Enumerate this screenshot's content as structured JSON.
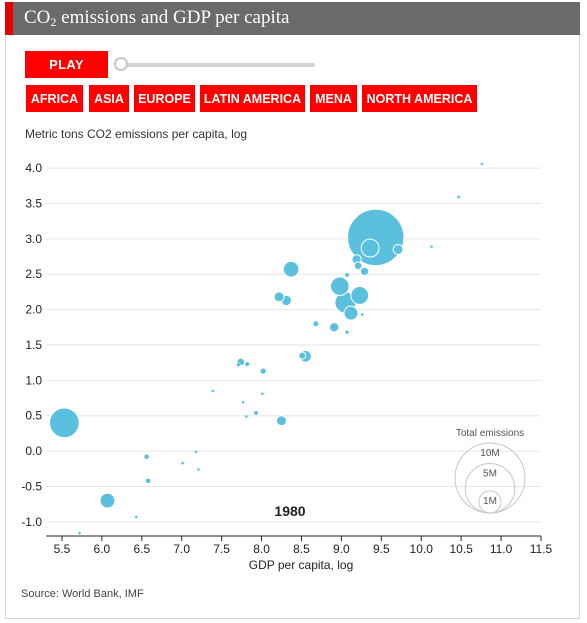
{
  "title": {
    "main": "CO",
    "subscript": "2",
    "rest": " emissions and GDP per capita"
  },
  "controls": {
    "play_label": "PLAY",
    "regions": [
      "AFRICA",
      "ASIA",
      "EUROPE",
      "LATIN AMERICA",
      "MENA",
      "NORTH AMERICA"
    ]
  },
  "source": "Source: World Bank, IMF",
  "colors": {
    "accent": "#ff0000",
    "title_bar": "#6a6a6a",
    "bubble": "#5bc0de",
    "bubble_stroke": "#ffffff"
  },
  "chart_data": {
    "type": "scatter",
    "ylabel": "Metric tons CO2 emissions per capita, log",
    "xlabel": "GDP per capita, log",
    "xlim": [
      5.3,
      11.5
    ],
    "ylim": [
      -1.2,
      4.1
    ],
    "x_ticks": [
      "5.5",
      "6.0",
      "6.5",
      "7.0",
      "7.5",
      "8.0",
      "8.5",
      "9.0",
      "9.5",
      "10.0",
      "10.5",
      "11.0",
      "11.5"
    ],
    "y_ticks": [
      "4.0",
      "3.5",
      "3.0",
      "2.5",
      "2.0",
      "1.5",
      "1.0",
      "0.5",
      "0.0",
      "-0.5",
      "-1.0"
    ],
    "grid": "horizontal",
    "year": "1980",
    "size_legend": {
      "title": "Total emissions",
      "entries": [
        "10M",
        "5M",
        "1M"
      ]
    },
    "points": [
      {
        "x": 5.53,
        "y": 0.4,
        "size": 1.8
      },
      {
        "x": 6.07,
        "y": -0.7,
        "size": 0.45
      },
      {
        "x": 5.72,
        "y": -1.16,
        "size": 0.01
      },
      {
        "x": 6.43,
        "y": -0.93,
        "size": 0.02
      },
      {
        "x": 6.58,
        "y": -0.42,
        "size": 0.05
      },
      {
        "x": 6.56,
        "y": -0.08,
        "size": 0.05
      },
      {
        "x": 7.01,
        "y": -0.17,
        "size": 0.02
      },
      {
        "x": 7.18,
        "y": -0.01,
        "size": 0.02
      },
      {
        "x": 7.21,
        "y": -0.26,
        "size": 0.01
      },
      {
        "x": 7.39,
        "y": 0.85,
        "size": 0.01
      },
      {
        "x": 7.74,
        "y": 1.26,
        "size": 0.12
      },
      {
        "x": 7.71,
        "y": 1.22,
        "size": 0.03
      },
      {
        "x": 7.82,
        "y": 1.23,
        "size": 0.04
      },
      {
        "x": 8.02,
        "y": 1.13,
        "size": 0.08
      },
      {
        "x": 7.77,
        "y": 0.69,
        "size": 0.01
      },
      {
        "x": 7.81,
        "y": 0.49,
        "size": 0.02
      },
      {
        "x": 7.93,
        "y": 0.54,
        "size": 0.04
      },
      {
        "x": 8.01,
        "y": 0.81,
        "size": 0.01
      },
      {
        "x": 8.25,
        "y": 0.43,
        "size": 0.2
      },
      {
        "x": 8.22,
        "y": 2.18,
        "size": 0.2
      },
      {
        "x": 8.31,
        "y": 2.13,
        "size": 0.22
      },
      {
        "x": 8.37,
        "y": 2.57,
        "size": 0.5
      },
      {
        "x": 8.51,
        "y": 1.35,
        "size": 0.1
      },
      {
        "x": 8.55,
        "y": 1.34,
        "size": 0.28
      },
      {
        "x": 8.68,
        "y": 1.8,
        "size": 0.06
      },
      {
        "x": 8.91,
        "y": 1.75,
        "size": 0.18
      },
      {
        "x": 8.98,
        "y": 2.33,
        "size": 0.7
      },
      {
        "x": 9.05,
        "y": 2.1,
        "size": 0.9
      },
      {
        "x": 9.07,
        "y": 1.68,
        "size": 0.03
      },
      {
        "x": 9.07,
        "y": 2.49,
        "size": 0.04
      },
      {
        "x": 9.12,
        "y": 1.95,
        "size": 0.4
      },
      {
        "x": 9.19,
        "y": 2.71,
        "size": 0.18
      },
      {
        "x": 9.21,
        "y": 2.62,
        "size": 0.12
      },
      {
        "x": 9.23,
        "y": 2.2,
        "size": 0.65
      },
      {
        "x": 9.26,
        "y": 1.93,
        "size": 0.02
      },
      {
        "x": 9.29,
        "y": 2.54,
        "size": 0.14
      },
      {
        "x": 9.43,
        "y": 3.02,
        "size": 6.5
      },
      {
        "x": 9.36,
        "y": 2.87,
        "size": 0.65
      },
      {
        "x": 9.71,
        "y": 2.85,
        "size": 0.2
      },
      {
        "x": 10.13,
        "y": 2.89,
        "size": 0.01
      },
      {
        "x": 10.47,
        "y": 3.59,
        "size": 0.02
      },
      {
        "x": 10.76,
        "y": 4.06,
        "size": 0.005
      }
    ]
  }
}
